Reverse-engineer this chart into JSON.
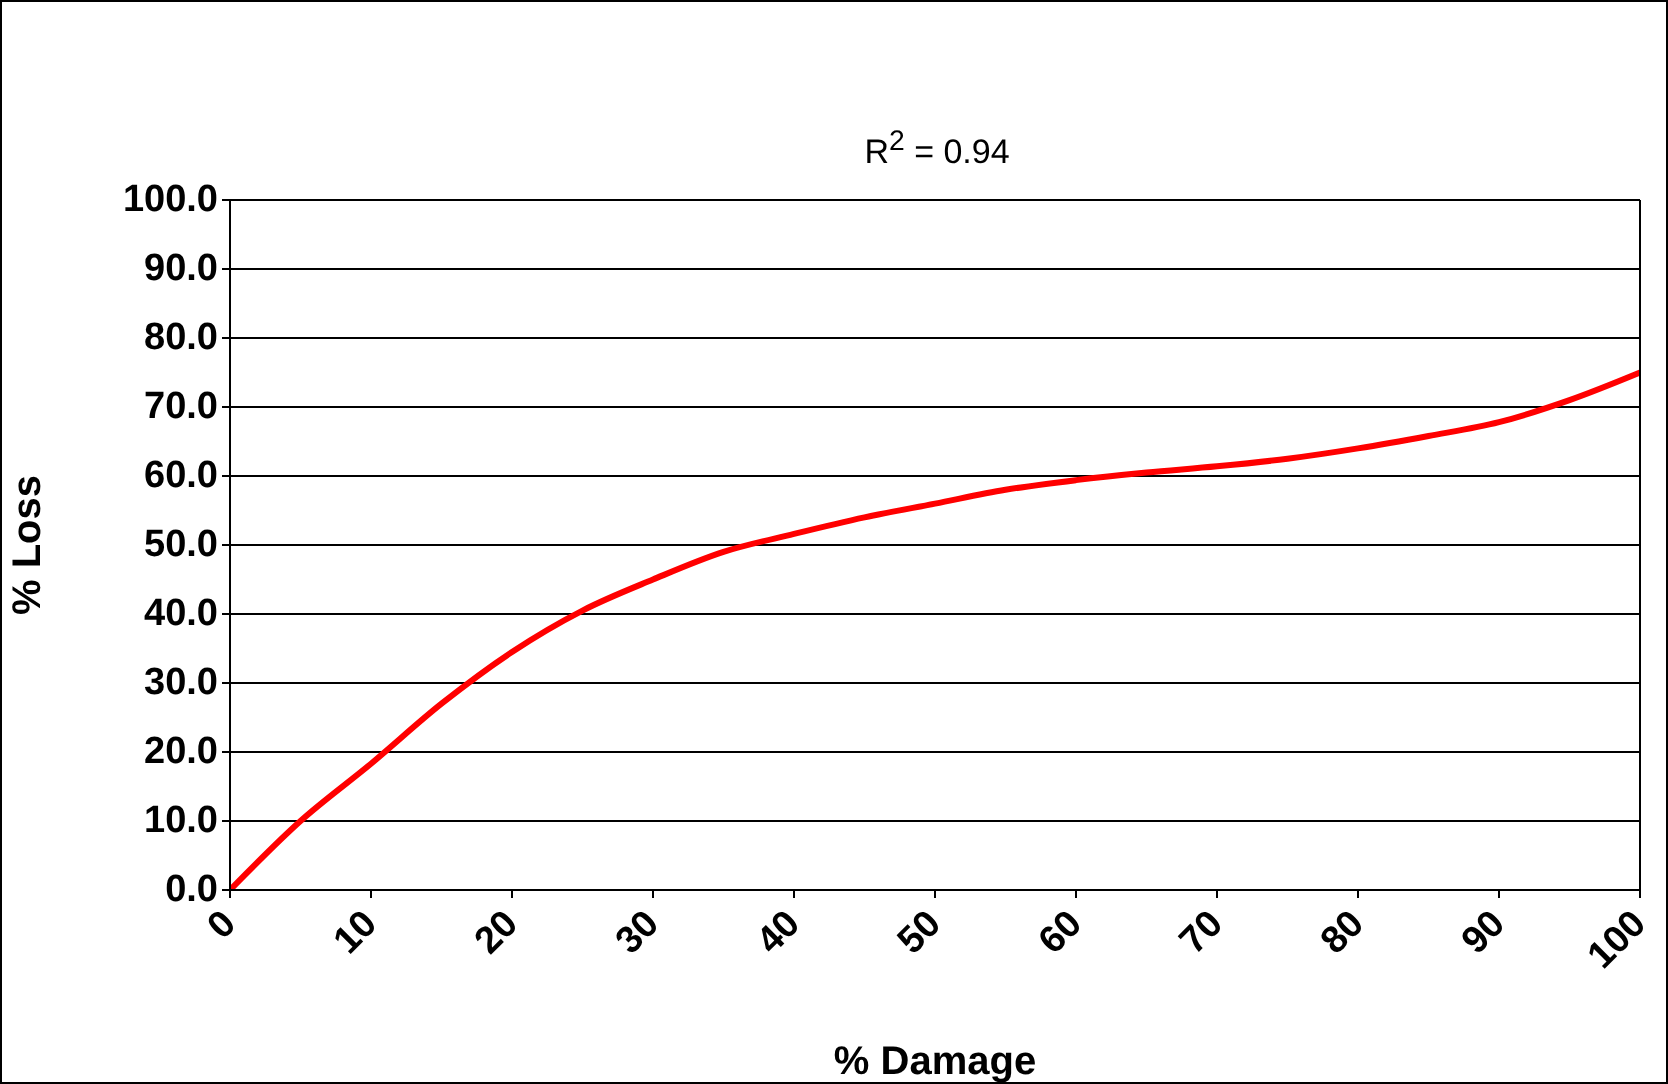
{
  "chart_data": {
    "type": "line",
    "title": "R$^{2}$ = 0.94",
    "xlabel": "% Damage",
    "ylabel": "% Loss",
    "x": [
      0,
      5,
      10,
      15,
      20,
      25,
      30,
      35,
      40,
      45,
      50,
      55,
      60,
      65,
      70,
      75,
      80,
      85,
      90,
      95,
      100
    ],
    "series": [
      {
        "color": "#ff0000",
        "values": [
          0,
          10,
          18.3,
          27,
          34.5,
          40.5,
          45,
          49,
          51.6,
          54,
          56,
          58,
          59.4,
          60.5,
          61.4,
          62.5,
          64,
          65.8,
          67.8,
          71,
          75
        ]
      }
    ],
    "xlim": [
      0,
      100
    ],
    "xticks": [
      0,
      10,
      20,
      30,
      40,
      50,
      60,
      70,
      80,
      90,
      100
    ],
    "ylim": [
      0,
      100
    ],
    "yticks": [
      {
        "value": 0,
        "label": "0.0"
      },
      {
        "value": 10,
        "label": "10.0"
      },
      {
        "value": 20,
        "label": "20.0"
      },
      {
        "value": 30,
        "label": "30.0"
      },
      {
        "value": 40,
        "label": "40.0"
      },
      {
        "value": 50,
        "label": "50.0"
      },
      {
        "value": 60,
        "label": "60.0"
      },
      {
        "value": 70,
        "label": "70.0"
      },
      {
        "value": 80,
        "label": "80.0"
      },
      {
        "value": 90,
        "label": "90.0"
      },
      {
        "value": 100,
        "label": "100.0"
      }
    ],
    "grid": "y",
    "legend": false,
    "marker": "none",
    "line_style": "solid"
  }
}
